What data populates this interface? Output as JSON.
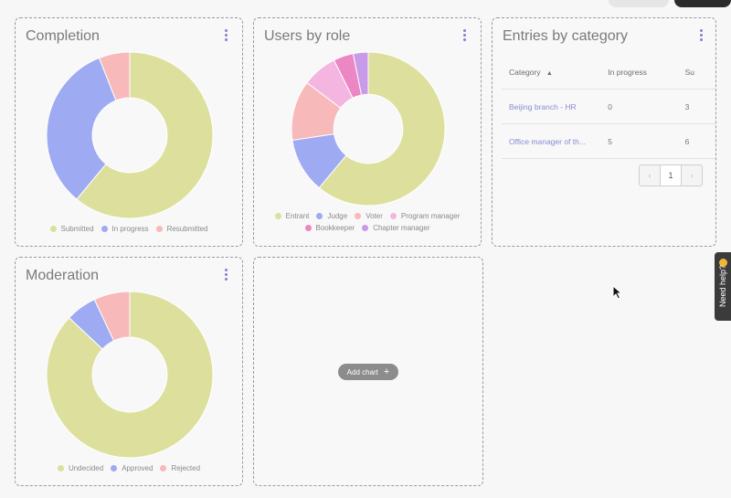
{
  "cards": {
    "completion": {
      "title": "Completion",
      "legend": [
        {
          "label": "Submitted",
          "color": "#dde09d"
        },
        {
          "label": "In progress",
          "color": "#9eaaf2"
        },
        {
          "label": "Resubmitted",
          "color": "#f7b9b9"
        }
      ]
    },
    "users_by_role": {
      "title": "Users by role",
      "legend": [
        {
          "label": "Entrant",
          "color": "#dde09d"
        },
        {
          "label": "Judge",
          "color": "#9eaaf2"
        },
        {
          "label": "Voter",
          "color": "#f7b9b9"
        },
        {
          "label": "Program manager",
          "color": "#f4b6e1"
        },
        {
          "label": "Bookkeeper",
          "color": "#ec86c4"
        },
        {
          "label": "Chapter manager",
          "color": "#c89ae8"
        }
      ]
    },
    "entries_by_category": {
      "title": "Entries by category",
      "columns": [
        "Category",
        "In progress",
        "Su"
      ],
      "sort_icon": "sort-up-icon",
      "rows": [
        {
          "category": "Beijing branch - HR",
          "in_progress": "0",
          "submitted": "3"
        },
        {
          "category": "Office manager of th...",
          "in_progress": "5",
          "submitted": "6"
        }
      ],
      "pagination": {
        "prev": "‹",
        "page": "1",
        "next": "›"
      }
    },
    "moderation": {
      "title": "Moderation",
      "legend": [
        {
          "label": "Undecided",
          "color": "#dde09d"
        },
        {
          "label": "Approved",
          "color": "#9eaaf2"
        },
        {
          "label": "Rejected",
          "color": "#f7b9b9"
        }
      ]
    },
    "add_chart": {
      "label": "Add chart",
      "icon": "plus-icon"
    }
  },
  "help": {
    "label": "Need help?",
    "icon": "hand-wave-icon"
  },
  "chart_data": [
    {
      "type": "pie",
      "title": "Completion",
      "categories": [
        "Submitted",
        "In progress",
        "Resubmitted"
      ],
      "values": [
        61,
        33,
        6
      ]
    },
    {
      "type": "pie",
      "title": "Users by role",
      "categories": [
        "Entrant",
        "Judge",
        "Voter",
        "Program manager",
        "Bookkeeper",
        "Chapter manager"
      ],
      "values": [
        58,
        11,
        12,
        7,
        4,
        3
      ]
    },
    {
      "type": "pie",
      "title": "Moderation",
      "categories": [
        "Undecided",
        "Approved",
        "Rejected"
      ],
      "values": [
        87,
        6,
        7
      ]
    }
  ]
}
